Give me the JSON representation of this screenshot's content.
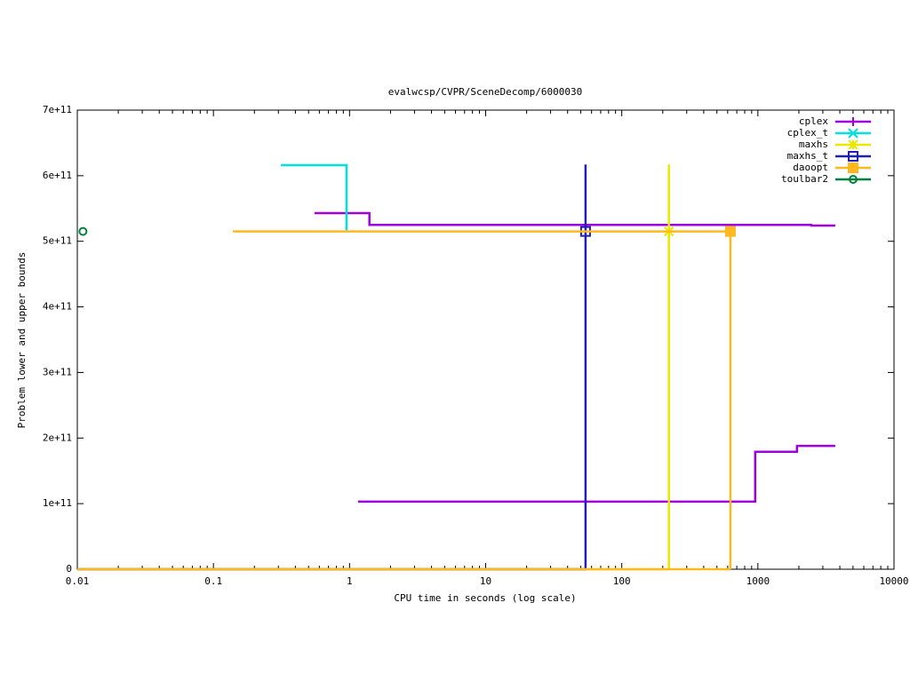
{
  "chart_data": {
    "type": "line",
    "title": "evalwcsp/CVPR/SceneDecomp/6000030",
    "xlabel": "CPU time in seconds (log scale)",
    "ylabel": "Problem lower and upper bounds",
    "xscale": "log",
    "xlim": [
      0.01,
      10000
    ],
    "xticks": [
      0.01,
      0.1,
      1,
      10,
      100,
      1000,
      10000
    ],
    "ylim": [
      0,
      700000000000
    ],
    "yticks": [
      0,
      {
        "value": 100000000000,
        "label": "1e+11"
      },
      {
        "value": 200000000000,
        "label": "2e+11"
      },
      {
        "value": 300000000000,
        "label": "3e+11"
      },
      {
        "value": 400000000000,
        "label": "4e+11"
      },
      {
        "value": 500000000000,
        "label": "5e+11"
      },
      {
        "value": 600000000000,
        "label": "6e+11"
      },
      {
        "value": 700000000000,
        "label": "7e+11"
      }
    ],
    "legend": "top-right",
    "series": [
      {
        "name": "cplex",
        "color": "#a000e0",
        "marker": "plus",
        "x": [
          0.553,
          1.4,
          1.4,
          2466,
          2466,
          3700,
          null,
          1.156,
          955,
          955,
          1936,
          1936,
          3700
        ],
        "values": [
          543000000000,
          543000000000,
          525000000000,
          525000000000,
          524000000000,
          524000000000,
          null,
          103000000000,
          103000000000,
          179000000000,
          179000000000,
          188000000000,
          188000000000
        ]
      },
      {
        "name": "cplex_t",
        "color": "#00e0e0",
        "marker": "x",
        "x": [
          0.313,
          0.95,
          0.95
        ],
        "values": [
          616000000000,
          616000000000,
          517000000000
        ]
      },
      {
        "name": "maxhs",
        "color": "#e8e800",
        "marker": "asterisk",
        "x": [
          0.01,
          222,
          222
        ],
        "values": [
          0,
          0,
          617000000000
        ],
        "markers": {
          "x": [
            222
          ],
          "values": [
            515000000000
          ]
        }
      },
      {
        "name": "maxhs_t",
        "color": "#2020b8",
        "marker": "square",
        "x": [
          0.01,
          54.2,
          54.2
        ],
        "values": [
          0,
          0,
          617000000000
        ],
        "markers": {
          "x": [
            54.2
          ],
          "values": [
            515000000000
          ]
        }
      },
      {
        "name": "daoopt",
        "color": "#ffb820",
        "marker": "filled-square",
        "x": [
          0.139,
          628,
          628,
          null,
          0.01,
          628
        ],
        "values": [
          515000000000,
          515000000000,
          0,
          null,
          0,
          0
        ],
        "markers": {
          "x": [
            628
          ],
          "values": [
            515000000000
          ]
        }
      },
      {
        "name": "toulbar2",
        "color": "#008040",
        "marker": "circle",
        "x": [],
        "values": [],
        "markers": {
          "x": [
            0.011
          ],
          "values": [
            515000000000
          ]
        }
      }
    ]
  }
}
